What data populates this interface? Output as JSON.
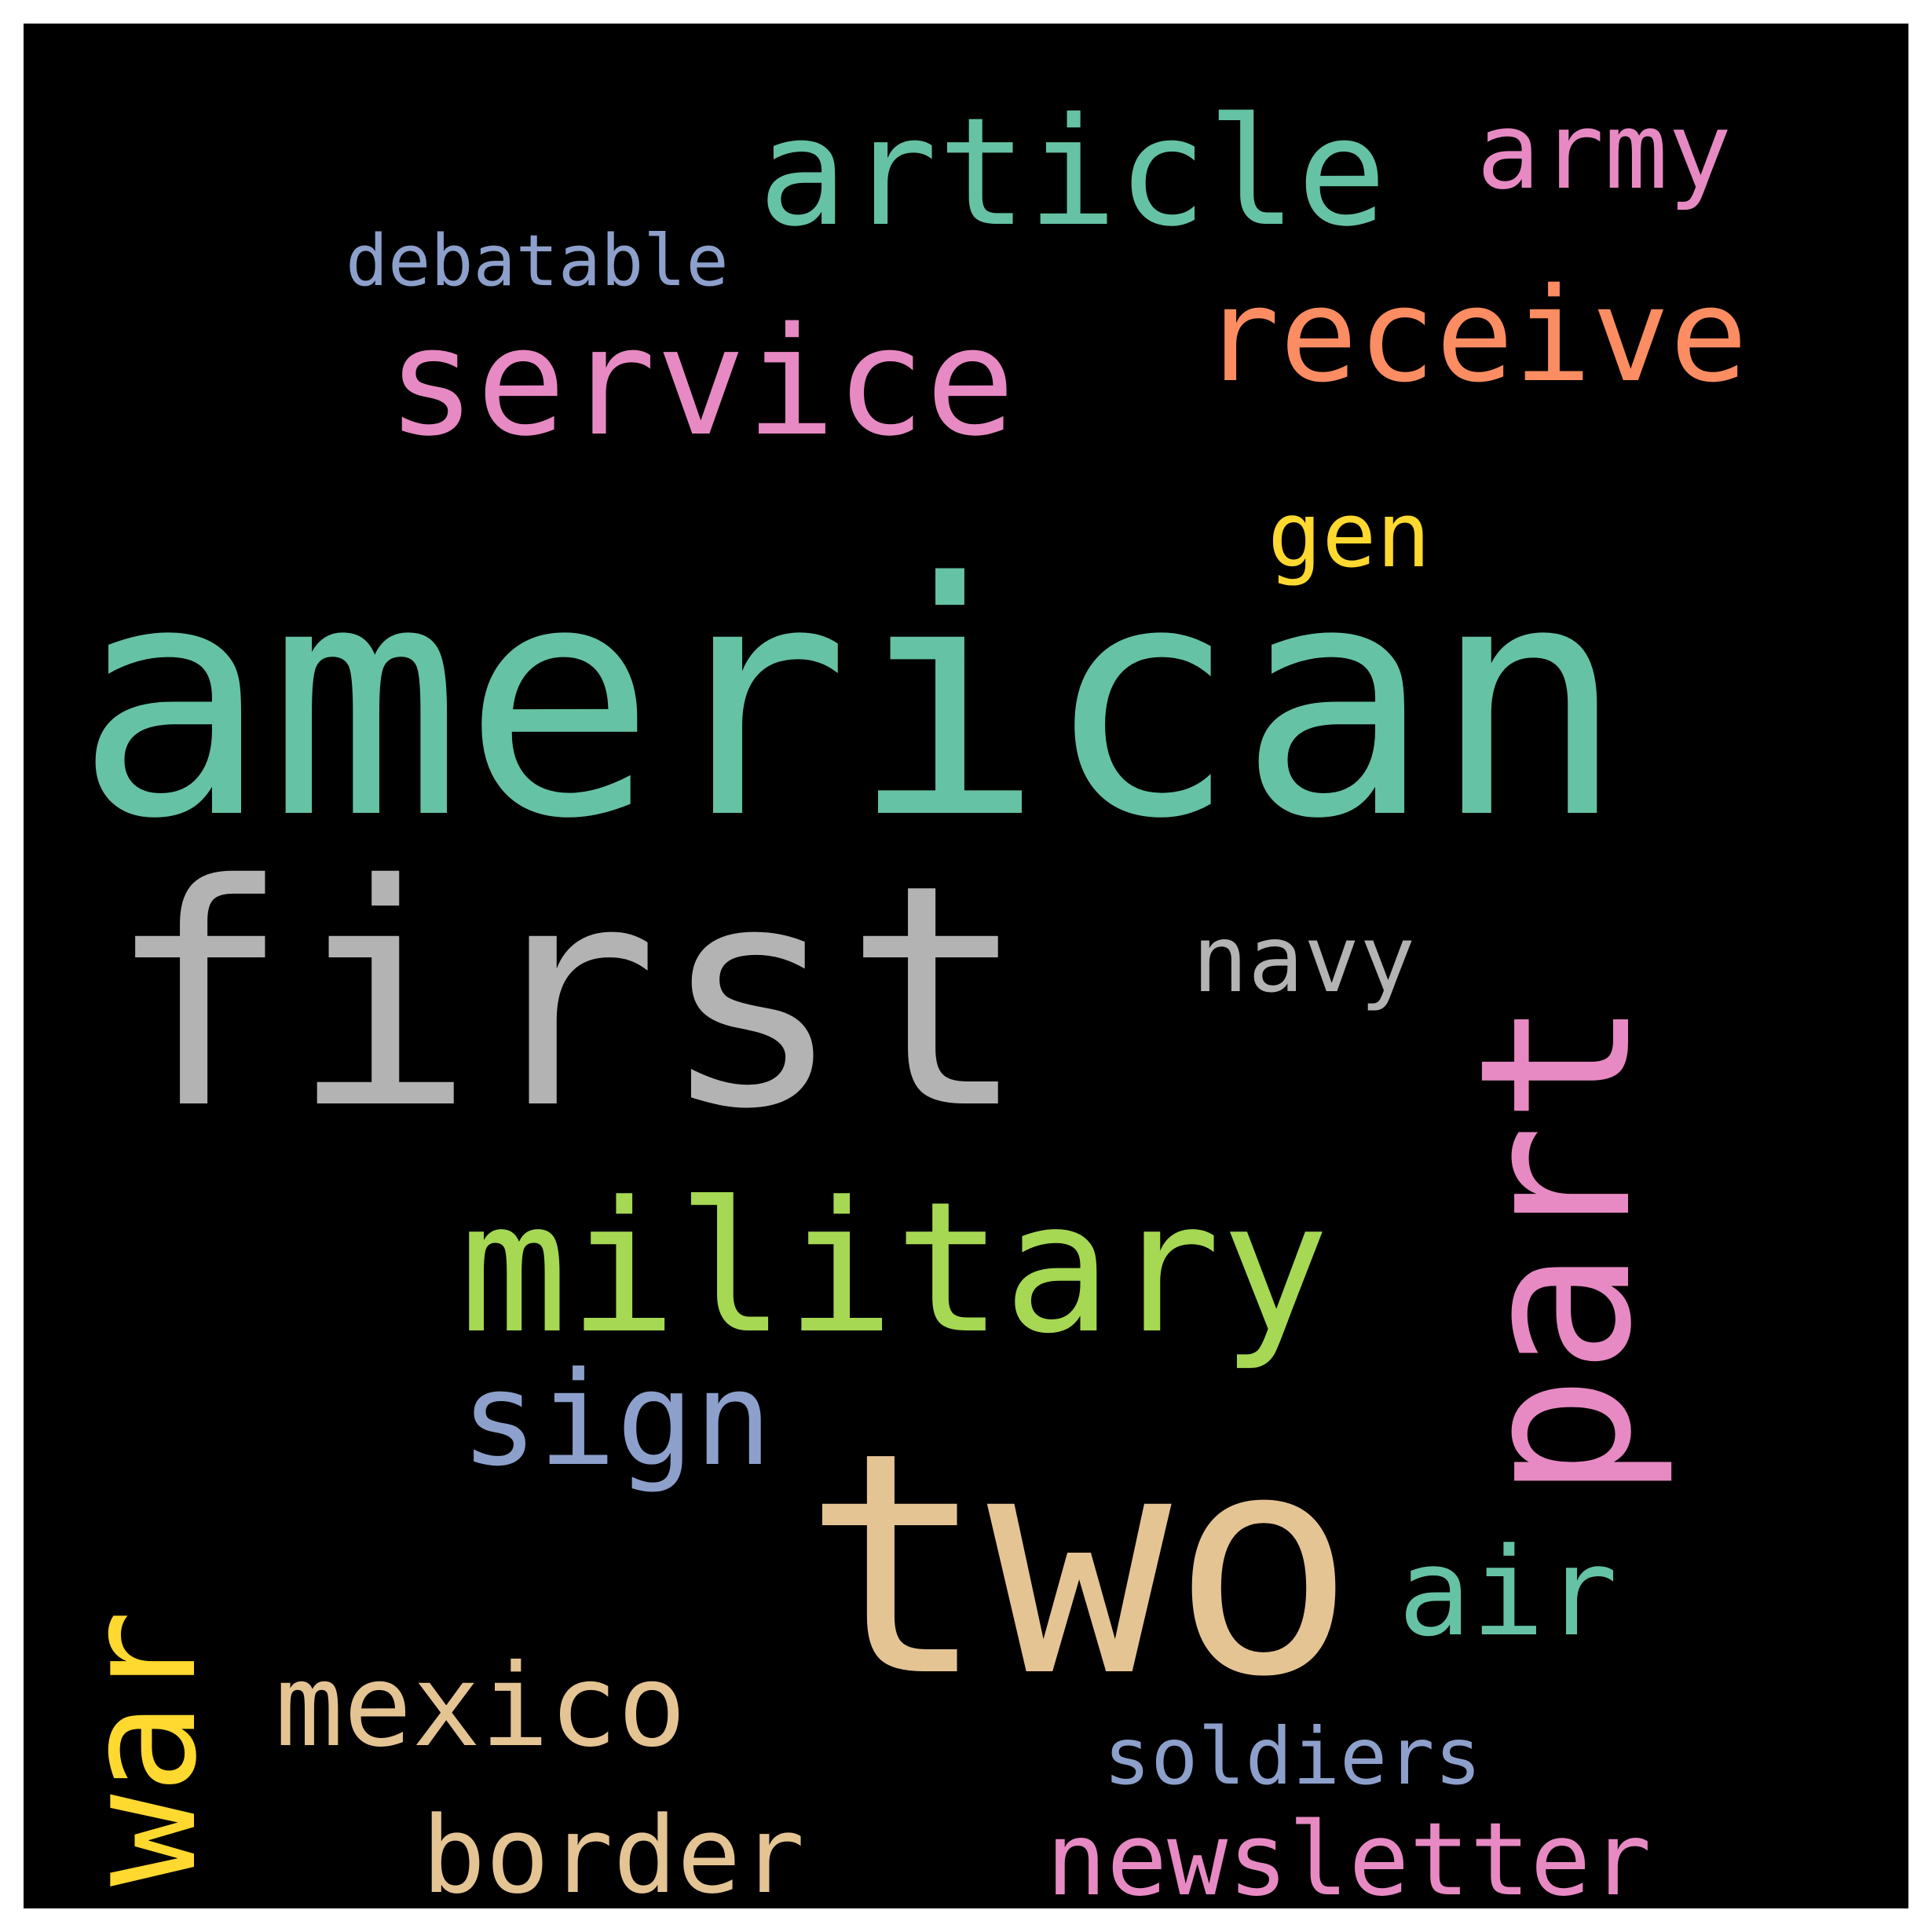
{
  "word_cloud": {
    "background_color": "#000000",
    "words": [
      {
        "text": "american",
        "color": "#66c2a5",
        "orientation": "horizontal"
      },
      {
        "text": "first",
        "color": "#b3b3b3",
        "orientation": "horizontal"
      },
      {
        "text": "two",
        "color": "#e5c494",
        "orientation": "horizontal"
      },
      {
        "text": "part",
        "color": "#e78ac3",
        "orientation": "vertical"
      },
      {
        "text": "military",
        "color": "#a6d854",
        "orientation": "horizontal"
      },
      {
        "text": "war",
        "color": "#ffd92f",
        "orientation": "vertical"
      },
      {
        "text": "service",
        "color": "#e78ac3",
        "orientation": "horizontal"
      },
      {
        "text": "article",
        "color": "#66c2a5",
        "orientation": "horizontal"
      },
      {
        "text": "receive",
        "color": "#fc8d62",
        "orientation": "horizontal"
      },
      {
        "text": "sign",
        "color": "#8da0cb",
        "orientation": "horizontal"
      },
      {
        "text": "mexico",
        "color": "#e5c494",
        "orientation": "horizontal"
      },
      {
        "text": "border",
        "color": "#e5c494",
        "orientation": "horizontal"
      },
      {
        "text": "newsletter",
        "color": "#e78ac3",
        "orientation": "horizontal"
      },
      {
        "text": "air",
        "color": "#66c2a5",
        "orientation": "horizontal"
      },
      {
        "text": "army",
        "color": "#e78ac3",
        "orientation": "horizontal"
      },
      {
        "text": "navy",
        "color": "#b3b3b3",
        "orientation": "horizontal"
      },
      {
        "text": "gen",
        "color": "#ffd92f",
        "orientation": "horizontal"
      },
      {
        "text": "soldiers",
        "color": "#8da0cb",
        "orientation": "horizontal"
      },
      {
        "text": "debatable",
        "color": "#8da0cb",
        "orientation": "horizontal"
      }
    ]
  }
}
